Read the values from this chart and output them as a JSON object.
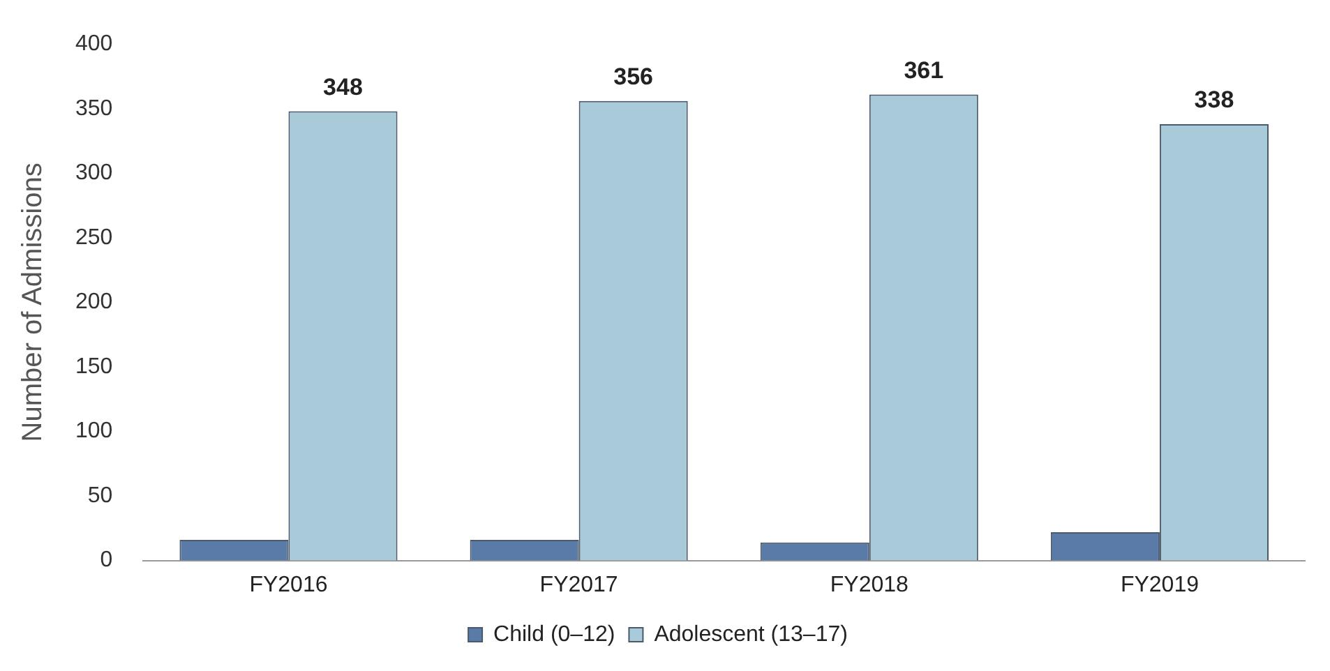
{
  "chart_data": {
    "type": "bar",
    "ylabel": "Number of Admissions",
    "categories": [
      "FY2016",
      "FY2017",
      "FY2018",
      "FY2019"
    ],
    "series": [
      {
        "name": "Child (0–12)",
        "color": "#5a7aa8",
        "values": [
          16,
          16,
          14,
          22
        ]
      },
      {
        "name": "Adolescent (13–17)",
        "color": "#a9cbd9",
        "values": [
          348,
          356,
          361,
          338
        ],
        "value_labels": [
          "348",
          "356",
          "361",
          "338"
        ]
      }
    ],
    "ylim": [
      0,
      400
    ],
    "yticks": [
      0,
      50,
      100,
      150,
      200,
      250,
      300,
      350,
      400
    ],
    "grid": false,
    "legend": "bottom"
  }
}
